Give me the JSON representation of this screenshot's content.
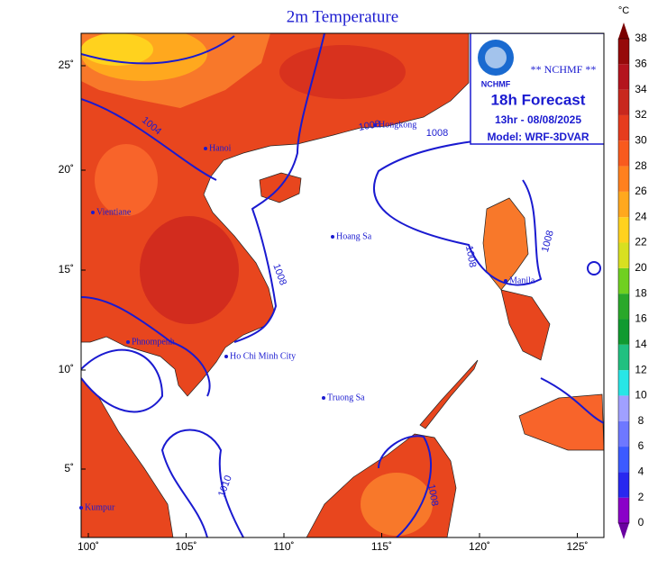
{
  "title": "2m Temperature",
  "info_box": {
    "logo": "NCHMF",
    "agency": "** NCHMF **",
    "forecast": "18h Forecast",
    "valid": "13hr - 08/08/2025",
    "model": "Model: WRF-3DVAR"
  },
  "axes": {
    "lat_labels": [
      "25˚",
      "20˚",
      "15˚",
      "10˚",
      "5˚"
    ],
    "lon_labels": [
      "100˚",
      "105˚",
      "110˚",
      "115˚",
      "120˚",
      "125˚"
    ]
  },
  "places": [
    "Hanoi",
    "Vientiane",
    "Hongkong",
    "Hoang Sa",
    "Manila",
    "Phnompenh",
    "Ho Chi Minh City",
    "Truong Sa",
    "Kumpur"
  ],
  "isobar_labels": [
    "1004",
    "1008",
    "1008",
    "1008",
    "1008",
    "1008",
    "1010",
    "1008"
  ],
  "colorbar": {
    "unit": "°C",
    "ticks": [
      0,
      2,
      4,
      6,
      8,
      10,
      12,
      14,
      16,
      18,
      20,
      22,
      24,
      26,
      28,
      30,
      32,
      34,
      36,
      38
    ],
    "colors": [
      "#8a00c8",
      "#2828f0",
      "#3c5aff",
      "#6e78ff",
      "#a0a0ff",
      "#28e6e6",
      "#20c080",
      "#109a30",
      "#2aa82a",
      "#70d020",
      "#d8e020",
      "#ffd21e",
      "#ffa81e",
      "#ff801e",
      "#f85a1e",
      "#e63c1e",
      "#c8281e",
      "#b4141e",
      "#960a0a"
    ],
    "under_color": "#6a00a0",
    "over_color": "#7a0000"
  }
}
